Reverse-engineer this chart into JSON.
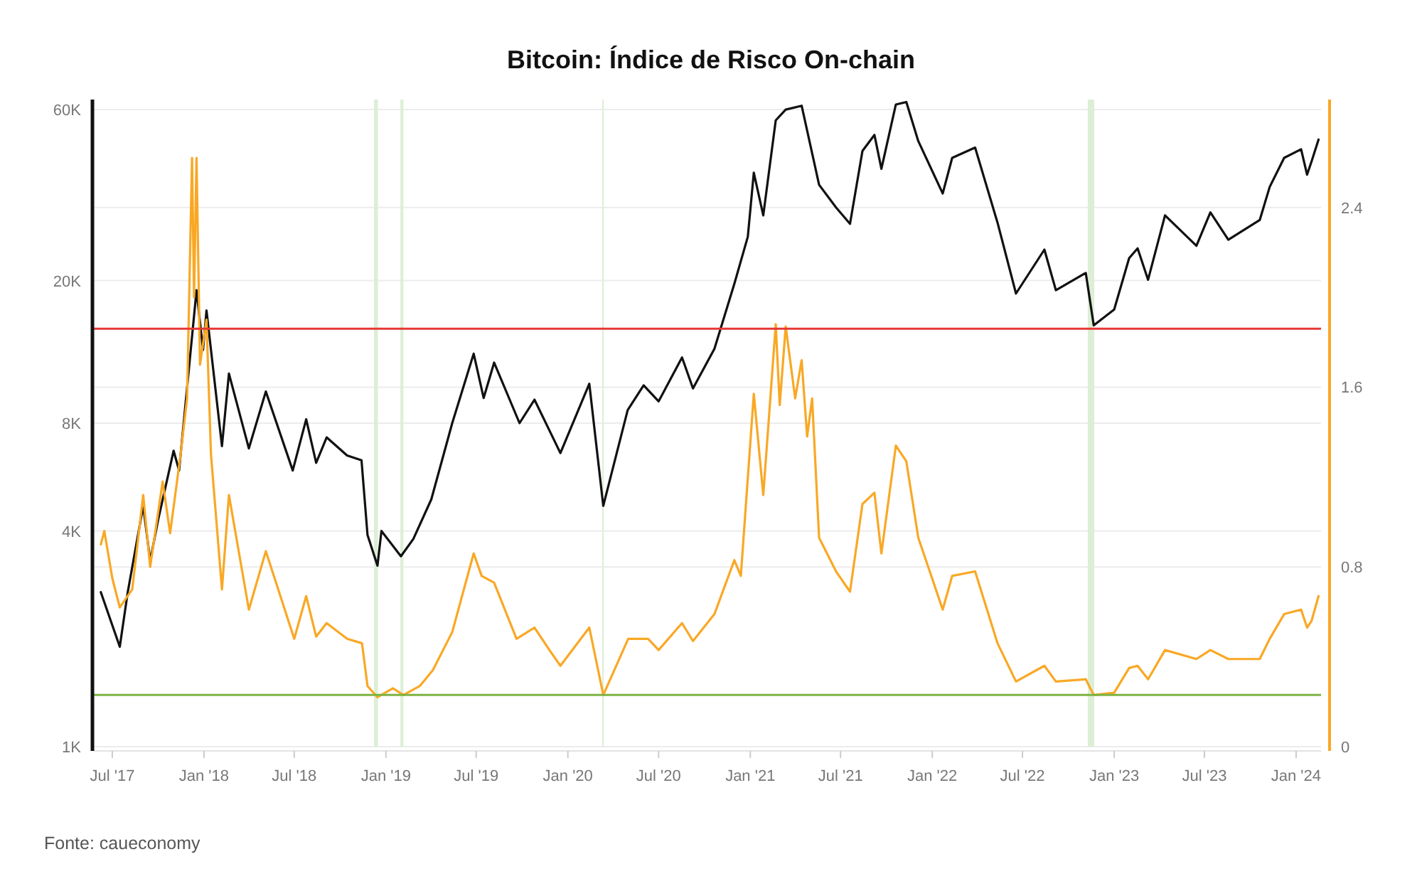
{
  "chart_data": {
    "type": "line",
    "title": "Bitcoin: Índice de Risco On-chain",
    "annotations": [
      "Fonte: caueconomy"
    ],
    "xlim": [
      "2017-05-25",
      "2024-02-20"
    ],
    "xticks": [
      {
        "value": "2017-07-01",
        "label": "Jul '17"
      },
      {
        "value": "2018-01-01",
        "label": "Jan '18"
      },
      {
        "value": "2018-07-01",
        "label": "Jul '18"
      },
      {
        "value": "2019-01-01",
        "label": "Jan '19"
      },
      {
        "value": "2019-07-01",
        "label": "Jul '19"
      },
      {
        "value": "2020-01-01",
        "label": "Jan '20"
      },
      {
        "value": "2020-07-01",
        "label": "Jul '20"
      },
      {
        "value": "2021-01-01",
        "label": "Jan '21"
      },
      {
        "value": "2021-07-01",
        "label": "Jul '21"
      },
      {
        "value": "2022-01-01",
        "label": "Jan '22"
      },
      {
        "value": "2022-07-01",
        "label": "Jul '22"
      },
      {
        "value": "2023-01-01",
        "label": "Jan '23"
      },
      {
        "value": "2023-07-01",
        "label": "Jul '23"
      },
      {
        "value": "2024-01-01",
        "label": "Jan '24"
      }
    ],
    "log": "y",
    "ylim": [
      1000,
      64000
    ],
    "yticks": [
      {
        "value": 1000,
        "label": "1K"
      },
      {
        "value": 4000,
        "label": "4K"
      },
      {
        "value": 8000,
        "label": "8K"
      },
      {
        "value": 20000,
        "label": "20K"
      },
      {
        "value": 60000,
        "label": "60K"
      }
    ],
    "y2lim": [
      0,
      2.88
    ],
    "y2ticks": [
      0,
      0.8,
      1.6,
      2.4
    ],
    "grid": "y",
    "series": [
      {
        "color": "#111111",
        "x": [
          "2017-06-08",
          "2017-07-16",
          "2017-08-01",
          "2017-09-01",
          "2017-09-15",
          "2017-10-01",
          "2017-11-01",
          "2017-11-12",
          "2017-12-17",
          "2017-12-30",
          "2018-01-06",
          "2018-02-06",
          "2018-02-20",
          "2018-04-01",
          "2018-05-05",
          "2018-06-28",
          "2018-07-25",
          "2018-08-14",
          "2018-09-04",
          "2018-10-15",
          "2018-11-13",
          "2018-11-25",
          "2018-12-15",
          "2018-12-23",
          "2019-01-31",
          "2019-02-25",
          "2019-04-02",
          "2019-05-14",
          "2019-06-26",
          "2019-07-16",
          "2019-08-06",
          "2019-09-26",
          "2019-10-26",
          "2019-12-17",
          "2020-02-13",
          "2020-03-12",
          "2020-04-30",
          "2020-06-01",
          "2020-07-01",
          "2020-08-17",
          "2020-09-08",
          "2020-10-21",
          "2020-11-30",
          "2020-12-27",
          "2021-01-08",
          "2021-01-27",
          "2021-02-21",
          "2021-03-13",
          "2021-04-14",
          "2021-05-19",
          "2021-06-22",
          "2021-07-20",
          "2021-08-14",
          "2021-09-07",
          "2021-09-21",
          "2021-10-20",
          "2021-11-10",
          "2021-12-04",
          "2022-01-22",
          "2022-02-10",
          "2022-03-28",
          "2022-05-12",
          "2022-06-18",
          "2022-08-14",
          "2022-09-06",
          "2022-11-05",
          "2022-11-21",
          "2023-01-01",
          "2023-01-31",
          "2023-02-17",
          "2023-03-10",
          "2023-04-13",
          "2023-06-15",
          "2023-07-13",
          "2023-08-18",
          "2023-10-20",
          "2023-11-09",
          "2023-12-08",
          "2024-01-11",
          "2024-01-23",
          "2024-02-01",
          "2024-02-15"
        ],
        "values": [
          2700,
          1900,
          2700,
          4700,
          3300,
          4300,
          6700,
          5900,
          18800,
          12800,
          16500,
          6900,
          11000,
          6800,
          9800,
          5900,
          8200,
          6200,
          7300,
          6500,
          6300,
          3900,
          3200,
          4000,
          3400,
          3800,
          4900,
          8000,
          12500,
          9400,
          11800,
          8000,
          9300,
          6600,
          10300,
          4700,
          8700,
          10200,
          9200,
          12200,
          10000,
          12900,
          19600,
          26500,
          40000,
          30400,
          56000,
          60000,
          61500,
          37000,
          32000,
          28800,
          46000,
          51000,
          41000,
          62000,
          63000,
          49000,
          35000,
          44000,
          47000,
          29000,
          18400,
          24400,
          18800,
          21000,
          15000,
          16600,
          23100,
          24600,
          20100,
          30400,
          25000,
          31000,
          26000,
          29500,
          36500,
          44000,
          46500,
          39500,
          43000,
          49500
        ]
      },
      {
        "color": "#f9a825",
        "axis": "y2",
        "x": [
          "2017-06-08",
          "2017-06-15",
          "2017-07-01",
          "2017-07-16",
          "2017-08-10",
          "2017-09-01",
          "2017-09-15",
          "2017-10-10",
          "2017-10-25",
          "2017-11-15",
          "2017-11-28",
          "2017-12-08",
          "2017-12-12",
          "2017-12-17",
          "2017-12-24",
          "2018-01-06",
          "2018-01-15",
          "2018-02-06",
          "2018-02-20",
          "2018-04-01",
          "2018-05-05",
          "2018-07-01",
          "2018-07-25",
          "2018-08-14",
          "2018-09-04",
          "2018-10-15",
          "2018-11-14",
          "2018-11-25",
          "2018-12-15",
          "2019-01-15",
          "2019-02-05",
          "2019-03-10",
          "2019-04-05",
          "2019-05-14",
          "2019-06-26",
          "2019-07-12",
          "2019-08-06",
          "2019-09-20",
          "2019-10-26",
          "2019-11-25",
          "2019-12-17",
          "2020-02-13",
          "2020-03-12",
          "2020-05-01",
          "2020-06-10",
          "2020-07-01",
          "2020-08-17",
          "2020-09-08",
          "2020-10-21",
          "2020-11-30",
          "2020-12-13",
          "2021-01-08",
          "2021-01-27",
          "2021-02-21",
          "2021-03-01",
          "2021-03-13",
          "2021-04-01",
          "2021-04-14",
          "2021-04-25",
          "2021-05-05",
          "2021-05-19",
          "2021-06-22",
          "2021-07-20",
          "2021-08-14",
          "2021-09-07",
          "2021-09-21",
          "2021-10-20",
          "2021-11-10",
          "2021-12-04",
          "2022-01-22",
          "2022-02-10",
          "2022-03-28",
          "2022-05-12",
          "2022-06-18",
          "2022-08-14",
          "2022-09-06",
          "2022-11-05",
          "2022-11-21",
          "2023-01-01",
          "2023-01-31",
          "2023-02-17",
          "2023-03-10",
          "2023-04-13",
          "2023-06-15",
          "2023-07-13",
          "2023-08-18",
          "2023-10-20",
          "2023-11-09",
          "2023-12-08",
          "2024-01-11",
          "2024-01-23",
          "2024-02-01",
          "2024-02-15"
        ],
        "values": [
          0.9,
          0.96,
          0.75,
          0.62,
          0.7,
          1.12,
          0.8,
          1.18,
          0.95,
          1.3,
          1.55,
          2.62,
          2.0,
          2.62,
          1.7,
          1.9,
          1.3,
          0.7,
          1.12,
          0.61,
          0.87,
          0.48,
          0.67,
          0.49,
          0.55,
          0.48,
          0.46,
          0.27,
          0.22,
          0.26,
          0.23,
          0.27,
          0.34,
          0.51,
          0.86,
          0.76,
          0.73,
          0.48,
          0.53,
          0.43,
          0.36,
          0.53,
          0.23,
          0.48,
          0.48,
          0.43,
          0.55,
          0.47,
          0.59,
          0.83,
          0.76,
          1.57,
          1.12,
          1.88,
          1.52,
          1.87,
          1.55,
          1.72,
          1.38,
          1.55,
          0.93,
          0.78,
          0.69,
          1.08,
          1.13,
          0.86,
          1.34,
          1.27,
          0.93,
          0.61,
          0.76,
          0.78,
          0.46,
          0.29,
          0.36,
          0.29,
          0.3,
          0.23,
          0.24,
          0.35,
          0.36,
          0.3,
          0.43,
          0.39,
          0.43,
          0.39,
          0.39,
          0.48,
          0.59,
          0.61,
          0.53,
          0.56,
          0.67
        ]
      }
    ],
    "ref_lines": [
      {
        "axis": "y2",
        "value": 1.86,
        "color": "#e53935"
      },
      {
        "axis": "y2",
        "value": 0.23,
        "color": "#7cb342"
      }
    ],
    "bands": [
      {
        "axis": "x",
        "from": "2018-12-08",
        "to": "2018-12-16",
        "color": "#dcefd6"
      },
      {
        "axis": "x",
        "from": "2019-01-30",
        "to": "2019-02-05",
        "color": "#dcefd6"
      },
      {
        "axis": "x",
        "from": "2020-03-10",
        "to": "2020-03-13",
        "color": "#dcefd6"
      },
      {
        "axis": "x",
        "from": "2022-11-09",
        "to": "2022-11-22",
        "color": "#dcefd6"
      }
    ]
  }
}
